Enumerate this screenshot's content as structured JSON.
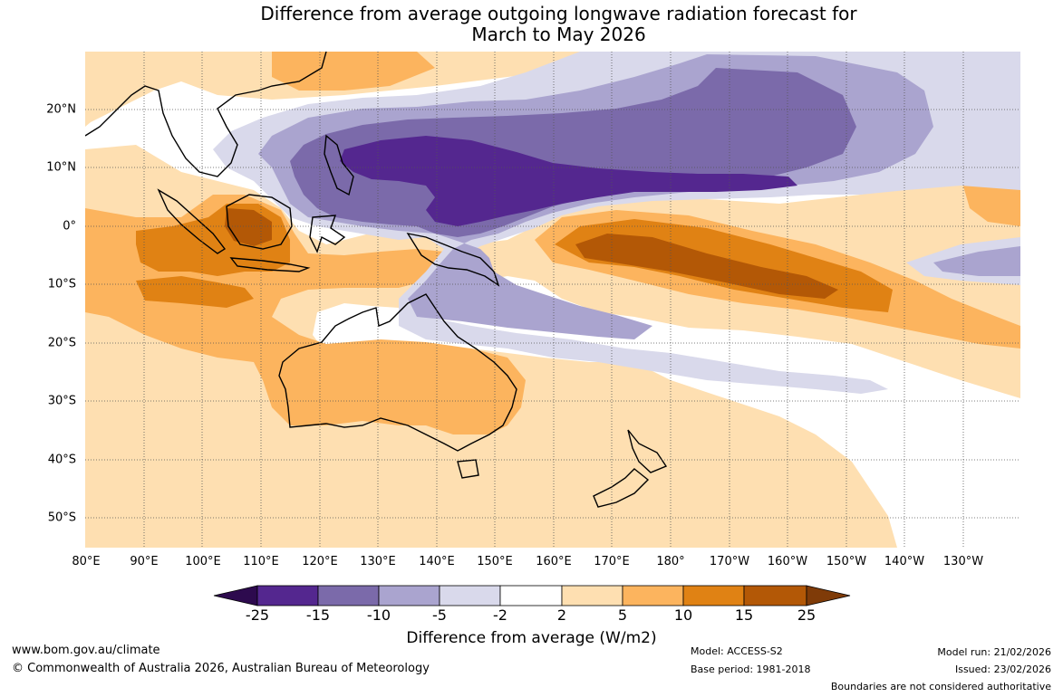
{
  "title_line1": "Difference from average outgoing longwave radiation forecast for",
  "title_line2": "March to May 2026",
  "lon_labels": [
    "80°E",
    "90°E",
    "100°E",
    "110°E",
    "120°E",
    "130°E",
    "140°E",
    "150°E",
    "160°E",
    "170°E",
    "180°",
    "170°W",
    "160°W",
    "150°W",
    "140°W",
    "130°W"
  ],
  "lat_labels": [
    "20°N",
    "10°N",
    "0°",
    "10°S",
    "20°S",
    "30°S",
    "40°S",
    "50°S"
  ],
  "colorbar": {
    "title": "Difference from average (W/m2)",
    "ticks": [
      "-25",
      "-15",
      "-10",
      "-5",
      "-2",
      "2",
      "5",
      "10",
      "15",
      "25"
    ],
    "colors": {
      "below_-25": "#2d0a4e",
      "-25_-15": "#54278f",
      "-15_-10": "#7b6aaa",
      "-10_-5": "#aaa4cf",
      "-5_-2": "#d9d9eb",
      "-2_2": "#ffffff",
      "2_5": "#fedfb1",
      "5_10": "#fcb45e",
      "10_15": "#e08214",
      "15_25": "#b35806",
      "above_25": "#7f3b08"
    }
  },
  "footer": {
    "website": "www.bom.gov.au/climate",
    "copyright": "© Commonwealth of Australia 2026, Australian Bureau of Meteorology",
    "model": "Model: ACCESS-S2",
    "base_period": "Base period: 1981-2018",
    "model_run": "Model run: 21/02/2026",
    "issued": "Issued: 23/02/2026",
    "disclaimer": "Boundaries are not considered authoritative"
  }
}
